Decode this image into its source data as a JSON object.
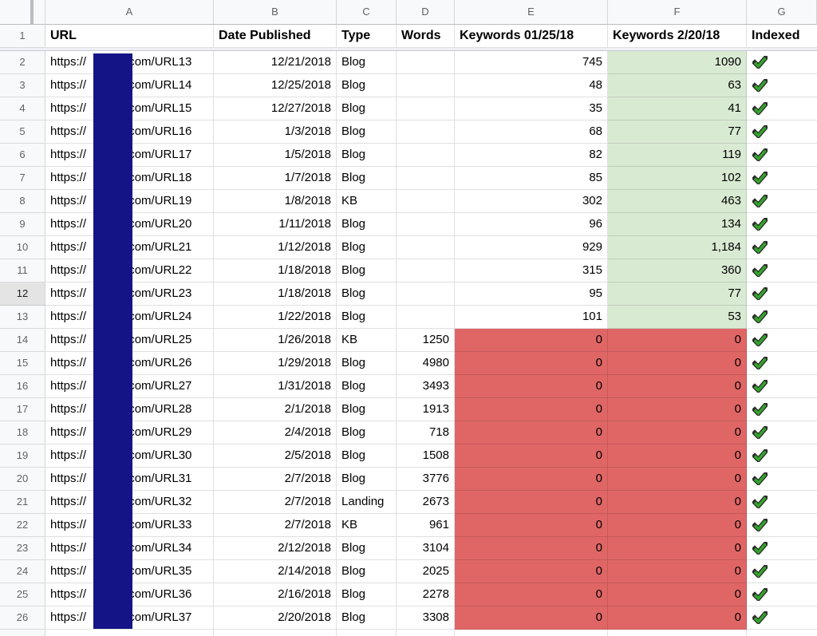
{
  "sheet": {
    "columns": [
      {
        "letter": "A",
        "header": "URL"
      },
      {
        "letter": "B",
        "header": "Date Published"
      },
      {
        "letter": "C",
        "header": "Type"
      },
      {
        "letter": "D",
        "header": "Words"
      },
      {
        "letter": "E",
        "header": "Keywords 01/25/18"
      },
      {
        "letter": "F",
        "header": "Keywords 2/20/18"
      },
      {
        "letter": "G",
        "header": "Indexed"
      }
    ],
    "header_row_number": "1",
    "url_prefix": "https://",
    "selected_row": 12,
    "rows": [
      {
        "n": "2",
        "url_suffix": ".com/URL13",
        "date": "12/21/2018",
        "type": "Blog",
        "words": "",
        "kw1": "745",
        "kw2": "1090",
        "zone": "green",
        "indexed": true
      },
      {
        "n": "3",
        "url_suffix": ".com/URL14",
        "date": "12/25/2018",
        "type": "Blog",
        "words": "",
        "kw1": "48",
        "kw2": "63",
        "zone": "green",
        "indexed": true
      },
      {
        "n": "4",
        "url_suffix": ".com/URL15",
        "date": "12/27/2018",
        "type": "Blog",
        "words": "",
        "kw1": "35",
        "kw2": "41",
        "zone": "green",
        "indexed": true
      },
      {
        "n": "5",
        "url_suffix": ".com/URL16",
        "date": "1/3/2018",
        "type": "Blog",
        "words": "",
        "kw1": "68",
        "kw2": "77",
        "zone": "green",
        "indexed": true
      },
      {
        "n": "6",
        "url_suffix": ".com/URL17",
        "date": "1/5/2018",
        "type": "Blog",
        "words": "",
        "kw1": "82",
        "kw2": "119",
        "zone": "green",
        "indexed": true
      },
      {
        "n": "7",
        "url_suffix": ".com/URL18",
        "date": "1/7/2018",
        "type": "Blog",
        "words": "",
        "kw1": "85",
        "kw2": "102",
        "zone": "green",
        "indexed": true
      },
      {
        "n": "8",
        "url_suffix": ".com/URL19",
        "date": "1/8/2018",
        "type": "KB",
        "words": "",
        "kw1": "302",
        "kw2": "463",
        "zone": "green",
        "indexed": true
      },
      {
        "n": "9",
        "url_suffix": ".com/URL20",
        "date": "1/11/2018",
        "type": "Blog",
        "words": "",
        "kw1": "96",
        "kw2": "134",
        "zone": "green",
        "indexed": true
      },
      {
        "n": "10",
        "url_suffix": ".com/URL21",
        "date": "1/12/2018",
        "type": "Blog",
        "words": "",
        "kw1": "929",
        "kw2": "1,184",
        "zone": "green",
        "indexed": true
      },
      {
        "n": "11",
        "url_suffix": ".com/URL22",
        "date": "1/18/2018",
        "type": "Blog",
        "words": "",
        "kw1": "315",
        "kw2": "360",
        "zone": "green",
        "indexed": true
      },
      {
        "n": "12",
        "url_suffix": ".com/URL23",
        "date": "1/18/2018",
        "type": "Blog",
        "words": "",
        "kw1": "95",
        "kw2": "77",
        "zone": "green",
        "indexed": true
      },
      {
        "n": "13",
        "url_suffix": ".com/URL24",
        "date": "1/22/2018",
        "type": "Blog",
        "words": "",
        "kw1": "101",
        "kw2": "53",
        "zone": "green",
        "indexed": true
      },
      {
        "n": "14",
        "url_suffix": ".com/URL25",
        "date": "1/26/2018",
        "type": "KB",
        "words": "1250",
        "kw1": "0",
        "kw2": "0",
        "zone": "red",
        "indexed": true
      },
      {
        "n": "15",
        "url_suffix": ".com/URL26",
        "date": "1/29/2018",
        "type": "Blog",
        "words": "4980",
        "kw1": "0",
        "kw2": "0",
        "zone": "red",
        "indexed": true
      },
      {
        "n": "16",
        "url_suffix": ".com/URL27",
        "date": "1/31/2018",
        "type": "Blog",
        "words": "3493",
        "kw1": "0",
        "kw2": "0",
        "zone": "red",
        "indexed": true
      },
      {
        "n": "17",
        "url_suffix": ".com/URL28",
        "date": "2/1/2018",
        "type": "Blog",
        "words": "1913",
        "kw1": "0",
        "kw2": "0",
        "zone": "red",
        "indexed": true
      },
      {
        "n": "18",
        "url_suffix": ".com/URL29",
        "date": "2/4/2018",
        "type": "Blog",
        "words": "718",
        "kw1": "0",
        "kw2": "0",
        "zone": "red",
        "indexed": true
      },
      {
        "n": "19",
        "url_suffix": ".com/URL30",
        "date": "2/5/2018",
        "type": "Blog",
        "words": "1508",
        "kw1": "0",
        "kw2": "0",
        "zone": "red",
        "indexed": true
      },
      {
        "n": "20",
        "url_suffix": ".com/URL31",
        "date": "2/7/2018",
        "type": "Blog",
        "words": "3776",
        "kw1": "0",
        "kw2": "0",
        "zone": "red",
        "indexed": true
      },
      {
        "n": "21",
        "url_suffix": ".com/URL32",
        "date": "2/7/2018",
        "type": "Landing",
        "words": "2673",
        "kw1": "0",
        "kw2": "0",
        "zone": "red",
        "indexed": true
      },
      {
        "n": "22",
        "url_suffix": ".com/URL33",
        "date": "2/7/2018",
        "type": "KB",
        "words": "961",
        "kw1": "0",
        "kw2": "0",
        "zone": "red",
        "indexed": true
      },
      {
        "n": "23",
        "url_suffix": ".com/URL34",
        "date": "2/12/2018",
        "type": "Blog",
        "words": "3104",
        "kw1": "0",
        "kw2": "0",
        "zone": "red",
        "indexed": true
      },
      {
        "n": "24",
        "url_suffix": ".com/URL35",
        "date": "2/14/2018",
        "type": "Blog",
        "words": "2025",
        "kw1": "0",
        "kw2": "0",
        "zone": "red",
        "indexed": true
      },
      {
        "n": "25",
        "url_suffix": ".com/URL36",
        "date": "2/16/2018",
        "type": "Blog",
        "words": "2278",
        "kw1": "0",
        "kw2": "0",
        "zone": "red",
        "indexed": true
      },
      {
        "n": "26",
        "url_suffix": ".com/URL37",
        "date": "2/20/2018",
        "type": "Blog",
        "words": "3308",
        "kw1": "0",
        "kw2": "0",
        "zone": "red",
        "indexed": true
      }
    ]
  },
  "icons": {
    "indexed": "checkmark-icon"
  },
  "colors": {
    "kw2_increase_bg": "#d9ead3",
    "kw_zero_bg": "#e06666",
    "redaction": "#141487",
    "check_green": "#34a42c",
    "check_outline": "#2b2b2b",
    "header_bg": "#f8f9fa",
    "selected_row_header_bg": "#e4e4e4"
  }
}
